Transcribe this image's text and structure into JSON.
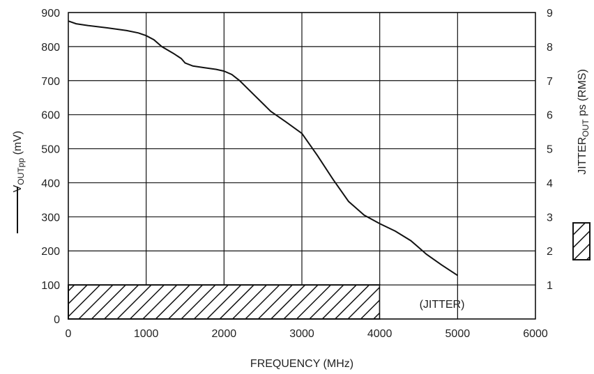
{
  "chart_data": {
    "type": "line",
    "xlabel": "FREQUENCY (MHz)",
    "ylabel_left": {
      "main": "V",
      "sub": "OUTpp",
      "unit": " (mV)"
    },
    "ylabel_right": {
      "main": "JITTER",
      "sub": "OUT",
      "unit": " ps (RMS)"
    },
    "xlim": [
      0,
      6000
    ],
    "ylim_left": [
      0,
      900
    ],
    "ylim_right": [
      0,
      9
    ],
    "x_ticks": [
      "0",
      "1000",
      "2000",
      "3000",
      "4000",
      "5000",
      "6000"
    ],
    "y_ticks_left": [
      "0",
      "100",
      "200",
      "300",
      "400",
      "500",
      "600",
      "700",
      "800",
      "900"
    ],
    "y_ticks_right": [
      "1",
      "2",
      "3",
      "4",
      "5",
      "6",
      "7",
      "8",
      "9"
    ],
    "grid": true,
    "series": [
      {
        "style": "solid line",
        "axis": "left",
        "x": [
          0,
          100,
          250,
          500,
          750,
          900,
          1000,
          1100,
          1200,
          1350,
          1450,
          1500,
          1600,
          1750,
          1900,
          2000,
          2100,
          2200,
          2400,
          2600,
          2800,
          3000,
          3200,
          3400,
          3600,
          3800,
          4000,
          4200,
          4400,
          4500,
          4600,
          4800,
          5000
        ],
        "y": [
          875,
          867,
          862,
          855,
          847,
          840,
          832,
          820,
          800,
          780,
          765,
          752,
          743,
          738,
          733,
          728,
          718,
          700,
          655,
          610,
          578,
          545,
          480,
          410,
          345,
          305,
          280,
          258,
          230,
          210,
          190,
          158,
          128
        ]
      },
      {
        "style": "hatched bar",
        "axis": "right",
        "x_range": [
          0,
          4000
        ],
        "value": 1
      }
    ],
    "annotations": [
      {
        "text": "(JITTER)",
        "x": 4800,
        "y_right": 0.45
      }
    ]
  }
}
